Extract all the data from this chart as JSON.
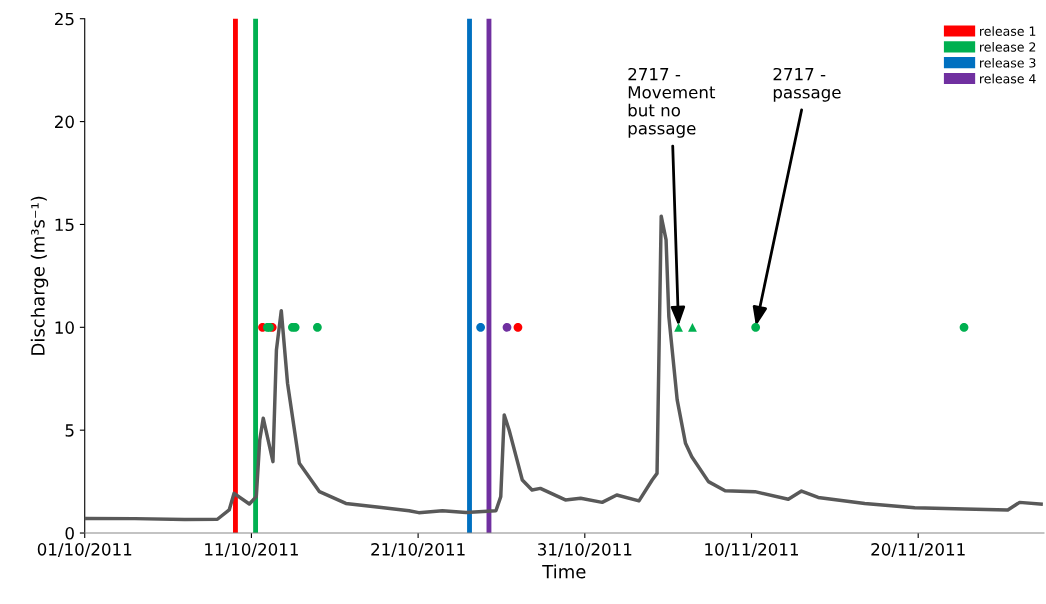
{
  "chart_data": {
    "type": "line",
    "xlabel": "Time",
    "ylabel": "Discharge (m³s⁻¹)",
    "xlim": [
      "2011-10-01",
      "2011-11-27T13:00"
    ],
    "xticks": [
      {
        "value": "2011-10-01",
        "label": "01/10/2011"
      },
      {
        "value": "2011-10-11",
        "label": "11/10/2011"
      },
      {
        "value": "2011-10-21",
        "label": "21/10/2011"
      },
      {
        "value": "2011-10-31",
        "label": "31/10/2011"
      },
      {
        "value": "2011-11-10",
        "label": "10/11/2011"
      },
      {
        "value": "2011-11-20",
        "label": "20/11/2011"
      }
    ],
    "ylim": [
      0,
      25
    ],
    "yticks": [
      0,
      5,
      10,
      15,
      20,
      25
    ],
    "grid": false,
    "legend": "top right",
    "series": [
      {
        "color": "#595959",
        "marker": "none",
        "line_style": "solid",
        "x": [
          "2011-10-01T00:00",
          "2011-10-04T00:00",
          "2011-10-07T00:00",
          "2011-10-08T23:00",
          "2011-10-09T16:00",
          "2011-10-09T23:00",
          "2011-10-10T21:00",
          "2011-10-11T07:00",
          "2011-10-11T12:00",
          "2011-10-11T17:00",
          "2011-10-12T07:00",
          "2011-10-12T12:00",
          "2011-10-12T19:00",
          "2011-10-13T04:00",
          "2011-10-13T21:00",
          "2011-10-15T02:00",
          "2011-10-16T16:00",
          "2011-10-18T16:00",
          "2011-10-20T11:00",
          "2011-10-21T01:00",
          "2011-10-22T11:00",
          "2011-10-23T21:00",
          "2011-10-25T16:00",
          "2011-10-25T23:00",
          "2011-10-26T04:00",
          "2011-10-26T11:00",
          "2011-10-27T06:00",
          "2011-10-27T20:00",
          "2011-10-28T08:00",
          "2011-10-29T20:00",
          "2011-10-30T18:00",
          "2011-11-01T01:00",
          "2011-11-01T22:00",
          "2011-11-03T06:00",
          "2011-11-04T01:00",
          "2011-11-04T08:00",
          "2011-11-04T14:00",
          "2011-11-04T21:00",
          "2011-11-05T01:00",
          "2011-11-05T13:00",
          "2011-11-06T01:00",
          "2011-11-06T10:00",
          "2011-11-07T10:00",
          "2011-11-08T10:00",
          "2011-11-10T05:00",
          "2011-11-12T05:00",
          "2011-11-13T00:00",
          "2011-11-14T00:00",
          "2011-11-16T19:00",
          "2011-11-19T19:00",
          "2011-11-22T19:00",
          "2011-11-25T09:00",
          "2011-11-26T02:00",
          "2011-11-27T09:00"
        ],
        "values": [
          0.71,
          0.7,
          0.66,
          0.67,
          1.12,
          1.93,
          1.41,
          1.77,
          4.52,
          5.58,
          3.47,
          8.9,
          10.81,
          7.28,
          3.39,
          2.01,
          1.44,
          1.25,
          1.08,
          0.99,
          1.08,
          1.0,
          1.08,
          1.77,
          5.74,
          5.01,
          2.58,
          2.09,
          2.17,
          1.61,
          1.69,
          1.49,
          1.85,
          1.56,
          2.58,
          2.9,
          15.4,
          14.25,
          10.52,
          6.47,
          4.36,
          3.71,
          2.5,
          2.06,
          2.01,
          1.64,
          2.04,
          1.73,
          1.44,
          1.23,
          1.17,
          1.12,
          1.49,
          1.41
        ]
      },
      {
        "type": "scatter",
        "name": "release 1",
        "color": "#ff0000",
        "marker": "circle",
        "x": [
          "2011-10-11T16:00",
          "2011-10-12T06:00",
          "2011-10-26T23:45"
        ],
        "values": [
          10,
          10,
          10
        ]
      },
      {
        "type": "scatter",
        "name": "release 2",
        "color": "#00b050",
        "marker": "circle",
        "x": [
          "2011-10-11T23:00",
          "2011-10-12T02:00",
          "2011-10-13T11:00",
          "2011-10-13T15:00",
          "2011-10-14T23:00",
          "2011-11-10T06:00",
          "2011-11-22T18:00"
        ],
        "values": [
          10,
          10,
          10,
          10,
          10,
          10,
          10
        ]
      },
      {
        "type": "scatter",
        "color": "#00b050",
        "marker": "triangle",
        "x": [
          "2011-11-05T15:00",
          "2011-11-06T11:00"
        ],
        "values": [
          10,
          10
        ]
      },
      {
        "type": "scatter",
        "name": "release 3",
        "color": "#0070c0",
        "marker": "circle",
        "x": [
          "2011-10-24T18:00"
        ],
        "values": [
          10
        ]
      },
      {
        "type": "scatter",
        "name": "release 4",
        "color": "#7030a0",
        "marker": "circle",
        "x": [
          "2011-10-26T08:00"
        ],
        "values": [
          10
        ]
      }
    ],
    "ref_lines": [
      {
        "axis": "x",
        "value": "2011-10-10T01:00",
        "color": "#ff0000"
      },
      {
        "axis": "x",
        "value": "2011-10-11T06:00",
        "color": "#00b050"
      },
      {
        "axis": "x",
        "value": "2011-10-24T02:00",
        "color": "#0070c0"
      },
      {
        "axis": "x",
        "value": "2011-10-25T06:00",
        "color": "#7030a0"
      }
    ],
    "annotations": [
      {
        "text": "2717 -\nMovement\nbut no\npassage",
        "x": "2011-11-05T15:00",
        "y": 10
      },
      {
        "text": "2717 -\npassage",
        "x": "2011-11-10T06:00",
        "y": 10
      }
    ]
  }
}
